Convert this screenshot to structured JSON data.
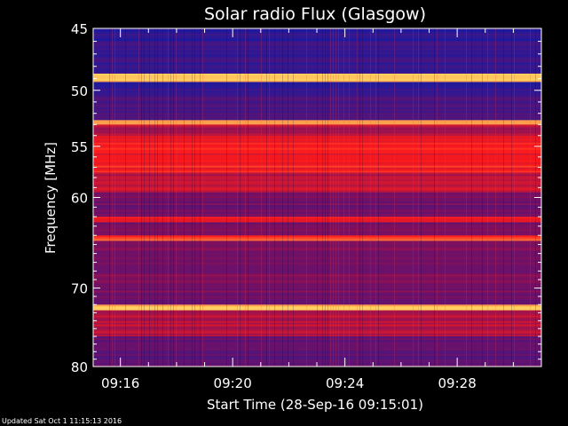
{
  "chart_data": {
    "type": "heatmap",
    "title": "Solar radio Flux (Glasgow)",
    "xlabel": "Start Time (28-Sep-16 09:15:01)",
    "ylabel": "Frequency [MHz]",
    "x_unit": "minutes after 09:00",
    "xlim": [
      15.03,
      31.0
    ],
    "ylim": [
      45,
      80
    ],
    "y_scale": "log",
    "x_ticks": [
      {
        "value": 16,
        "label": "09:16"
      },
      {
        "value": 20,
        "label": "09:20"
      },
      {
        "value": 24,
        "label": "09:24"
      },
      {
        "value": 28,
        "label": "09:28"
      }
    ],
    "y_ticks": [
      {
        "value": 45,
        "label": "45"
      },
      {
        "value": 50,
        "label": "50"
      },
      {
        "value": 55,
        "label": "55"
      },
      {
        "value": 60,
        "label": "60"
      },
      {
        "value": 70,
        "label": "70"
      },
      {
        "value": 80,
        "label": "80"
      }
    ],
    "colors": {
      "background": "#000000",
      "low": "#1a1aa0",
      "mid": "#7a1060",
      "high": "#ff1a1a",
      "peak": "#ffd060",
      "axis": "#ffffff"
    },
    "frequency_bands": [
      {
        "f0": 45.0,
        "f1": 46.0,
        "level": 0.05
      },
      {
        "f0": 46.0,
        "f1": 48.6,
        "level": 0.12
      },
      {
        "f0": 48.6,
        "f1": 49.3,
        "level": 1.0
      },
      {
        "f0": 49.3,
        "f1": 50.3,
        "level": 0.08
      },
      {
        "f0": 50.3,
        "f1": 51.5,
        "level": 0.18
      },
      {
        "f0": 51.5,
        "f1": 52.6,
        "level": 0.22
      },
      {
        "f0": 52.6,
        "f1": 53.0,
        "level": 0.95
      },
      {
        "f0": 53.0,
        "f1": 54.0,
        "level": 0.55
      },
      {
        "f0": 54.0,
        "f1": 57.5,
        "level": 0.72
      },
      {
        "f0": 57.5,
        "f1": 59.5,
        "level": 0.58
      },
      {
        "f0": 59.5,
        "f1": 62.0,
        "level": 0.35
      },
      {
        "f0": 62.0,
        "f1": 62.6,
        "level": 0.7
      },
      {
        "f0": 62.6,
        "f1": 64.0,
        "level": 0.35
      },
      {
        "f0": 64.0,
        "f1": 64.6,
        "level": 0.85
      },
      {
        "f0": 64.6,
        "f1": 72.0,
        "level": 0.38
      },
      {
        "f0": 72.0,
        "f1": 72.7,
        "level": 1.0
      },
      {
        "f0": 72.7,
        "f1": 76.0,
        "level": 0.55
      },
      {
        "f0": 76.0,
        "f1": 80.0,
        "level": 0.3
      }
    ]
  },
  "footer": {
    "updated_text": "Updated Sat Oct  1 11:15:13 2016"
  }
}
